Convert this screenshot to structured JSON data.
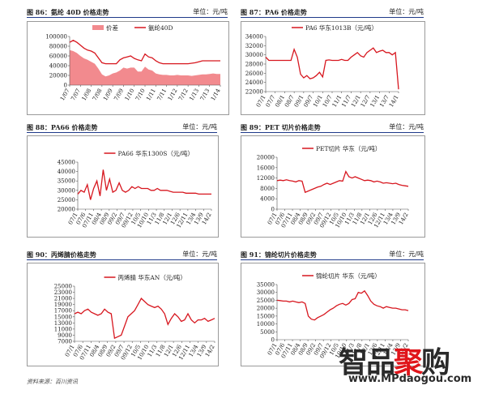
{
  "source_text": "资料来源：百川资讯",
  "watermark": {
    "logo_text": "智品聚购",
    "url": "www.MPdaogou.com"
  },
  "colors": {
    "line": "#d7171f",
    "fill": "#f28a8e",
    "header_rule": "#1f3a8a"
  },
  "panels": [
    {
      "id": "fig86",
      "title": "图 86：氨纶 40D 价格走势",
      "unit": "单位：元/吨"
    },
    {
      "id": "fig87",
      "title": "图 87：PA6 价格走势",
      "unit": "单位：元/吨"
    },
    {
      "id": "fig88",
      "title": "图 88：PA66 价格走势",
      "unit": "单位：元/吨"
    },
    {
      "id": "fig89",
      "title": "图 89：PET 切片价格走势",
      "unit": "单位：元/吨"
    },
    {
      "id": "fig90",
      "title": "图 90：丙烯腈价格走势",
      "unit": "单位：元/吨"
    },
    {
      "id": "fig91",
      "title": "图 91：锦纶切片价格走势",
      "unit": "单位：元/吨"
    }
  ],
  "chart_data": [
    {
      "type": "area",
      "legend": [
        "价差",
        "氨纶40D"
      ],
      "legend_position": "top",
      "yticks": [
        "0",
        "20000",
        "40000",
        "60000",
        "80000",
        "100000"
      ],
      "ylim": [
        0,
        100000
      ],
      "xticks": [
        "1/07",
        "7/07",
        "1/08",
        "7/08",
        "1/09",
        "7/09",
        "1/10",
        "7/10",
        "1/11",
        "7/11",
        "1/12",
        "7/12",
        "1/13",
        "7/13",
        "1/14"
      ],
      "series": [
        {
          "name": "氨纶40D",
          "values": [
            88000,
            92000,
            88000,
            82000,
            76000,
            72000,
            70000,
            66000,
            56000,
            46000,
            44000,
            44000,
            44000,
            44000,
            52000,
            56000,
            58000,
            60000,
            55000,
            52000,
            50000,
            64000,
            58000,
            56000,
            50000,
            46000,
            44000,
            44000,
            44000,
            44000,
            44000,
            44000,
            44000,
            44000,
            45000,
            46000,
            48000,
            50000,
            50000,
            50000,
            50000,
            50000,
            50000
          ]
        },
        {
          "name": "价差",
          "values": [
            72000,
            70000,
            66000,
            60000,
            55000,
            52000,
            48000,
            44000,
            34000,
            22000,
            18000,
            20000,
            24000,
            26000,
            30000,
            36000,
            34000,
            36000,
            36000,
            28000,
            28000,
            38000,
            32000,
            30000,
            24000,
            22000,
            21000,
            21000,
            20000,
            20000,
            21000,
            20000,
            20000,
            20000,
            19000,
            20000,
            21000,
            22000,
            22000,
            23000,
            24000,
            23000,
            23000
          ]
        }
      ]
    },
    {
      "type": "line",
      "legend": [
        "PA6 华东1013B（元/吨）"
      ],
      "legend_position": "top",
      "yticks": [
        "22000",
        "24000",
        "26000",
        "28000",
        "30000",
        "32000",
        "34000"
      ],
      "ylim": [
        22000,
        34000
      ],
      "xticks": [
        "07/1",
        "07/7",
        "08/1",
        "08/7",
        "09/1",
        "09/7",
        "10/1",
        "10/7",
        "11/1",
        "11/7",
        "12/1",
        "12/7",
        "13/1",
        "13/7",
        "14/1"
      ],
      "series": [
        {
          "name": "PA6 华东1013B（元/吨）",
          "values": [
            29500,
            28800,
            28800,
            28800,
            28800,
            28800,
            28800,
            28800,
            28800,
            31200,
            29500,
            25800,
            25000,
            25500,
            24800,
            25000,
            25500,
            26200,
            25200,
            28800,
            28900,
            28800,
            28800,
            28800,
            29000,
            28800,
            28800,
            29500,
            30000,
            30500,
            29800,
            29500,
            30500,
            31000,
            31500,
            30500,
            30800,
            31000,
            30500,
            30500,
            30000,
            30500,
            22500
          ]
        }
      ]
    },
    {
      "type": "line",
      "legend": [
        "PA66 华东1300S（元/吨）"
      ],
      "legend_position": "top",
      "yticks": [
        "20000",
        "25000",
        "30000",
        "35000",
        "40000",
        "45000"
      ],
      "ylim": [
        20000,
        45000
      ],
      "xticks": [
        "07/1",
        "07/6",
        "07/11",
        "08/4",
        "08/9",
        "09/2",
        "09/7",
        "09/12",
        "10/5",
        "10/10",
        "11/3",
        "11/8",
        "12/1",
        "12/6",
        "12/11",
        "13/4",
        "13/9",
        "14/2"
      ],
      "series": [
        {
          "name": "PA66 华东1300S（元/吨）",
          "values": [
            28000,
            30000,
            29000,
            33000,
            25000,
            31000,
            35000,
            27000,
            41000,
            30000,
            36000,
            29000,
            30000,
            34000,
            30000,
            29000,
            30000,
            32000,
            31000,
            32000,
            31000,
            31000,
            31000,
            30000,
            30000,
            31000,
            30000,
            30000,
            30000,
            29500,
            29000,
            29000,
            29000,
            29000,
            28500,
            28500,
            28500,
            28500,
            28000,
            28000,
            28000,
            28000,
            28000
          ]
        }
      ]
    },
    {
      "type": "line",
      "legend": [
        "PET切片 华东（元/吨）"
      ],
      "legend_position": "top",
      "yticks": [
        "0",
        "4000",
        "8000",
        "12000",
        "16000",
        "20000"
      ],
      "ylim": [
        0,
        20000
      ],
      "xticks": [
        "07/1",
        "07/6",
        "07/11",
        "08/4",
        "08/9",
        "09/2",
        "09/7",
        "09/12",
        "10/5",
        "10/10",
        "11/3",
        "11/8",
        "12/1",
        "12/6",
        "12/11",
        "13/4",
        "13/9",
        "14/2"
      ],
      "series": [
        {
          "name": "PET切片 华东（元/吨）",
          "values": [
            11000,
            11200,
            11000,
            11300,
            11000,
            10800,
            10500,
            11000,
            10800,
            6500,
            7000,
            7500,
            8000,
            8500,
            8800,
            9500,
            10000,
            9500,
            10000,
            10500,
            11000,
            10800,
            14500,
            12500,
            12000,
            12500,
            12000,
            11500,
            11000,
            11200,
            11000,
            10500,
            10800,
            10500,
            10000,
            10200,
            10000,
            9800,
            10000,
            9500,
            9200,
            9000,
            8800
          ]
        }
      ]
    },
    {
      "type": "line",
      "legend": [
        "丙烯腈 华东AN（元/吨）"
      ],
      "legend_position": "top",
      "yticks": [
        "7000",
        "9000",
        "11000",
        "13000",
        "15000",
        "17000",
        "19000",
        "21000",
        "23000",
        "25000"
      ],
      "ylim": [
        7000,
        25000
      ],
      "xticks": [
        "07/1",
        "07/6",
        "07/11",
        "08/4",
        "08/9",
        "09/2",
        "09/7",
        "09/12",
        "10/5",
        "10/10",
        "11/3",
        "11/8",
        "12/1",
        "12/6",
        "12/11",
        "13/4",
        "13/9",
        "14/2"
      ],
      "series": [
        {
          "name": "丙烯腈 华东AN（元/吨）",
          "values": [
            16000,
            16500,
            16000,
            17000,
            17500,
            16500,
            16000,
            15500,
            16000,
            17500,
            16500,
            16000,
            8000,
            8500,
            9000,
            12000,
            15000,
            16000,
            17000,
            19000,
            21000,
            20000,
            19000,
            18500,
            18000,
            18500,
            17500,
            16000,
            12500,
            14500,
            16000,
            15000,
            13500,
            14000,
            16000,
            14000,
            13000,
            14000,
            14000,
            14500,
            13500,
            14000,
            14500
          ]
        }
      ]
    },
    {
      "type": "line",
      "legend": [
        "锦纶切片 华东（元/吨）"
      ],
      "legend_position": "top",
      "yticks": [
        "0",
        "5000",
        "10000",
        "15000",
        "20000",
        "25000",
        "30000",
        "35000"
      ],
      "ylim": [
        0,
        35000
      ],
      "xticks": [
        "07/1",
        "07/6",
        "07/11",
        "08/4",
        "08/9",
        "09/2",
        "09/7",
        "09/12",
        "10/5",
        "10/10",
        "11/3",
        "11/8",
        "12/1",
        "12/6",
        "12/11",
        "13/4",
        "13/9",
        "14/2"
      ],
      "series": [
        {
          "name": "锦纶切片 华东（元/吨）",
          "values": [
            25000,
            24800,
            24500,
            24500,
            24000,
            24500,
            24000,
            23500,
            24000,
            23000,
            15000,
            13000,
            12500,
            14000,
            15000,
            16000,
            17500,
            19000,
            20000,
            21500,
            22500,
            23000,
            22000,
            23000,
            25500,
            26000,
            30000,
            29500,
            31000,
            28000,
            24500,
            22500,
            21500,
            21000,
            20000,
            21000,
            20500,
            20000,
            20000,
            19500,
            19000,
            19000,
            18500
          ]
        }
      ]
    }
  ]
}
